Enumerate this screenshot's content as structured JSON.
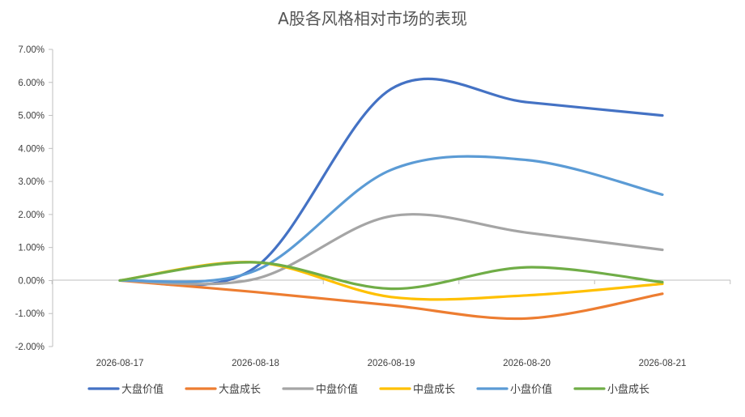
{
  "chart_data": {
    "type": "line",
    "title": "A股各风格相对市场的表现",
    "xlabel": "",
    "ylabel": "",
    "categories": [
      "2026-08-17",
      "2026-08-18",
      "2026-08-19",
      "2026-08-20",
      "2026-08-21"
    ],
    "ylim": [
      -0.02,
      0.07
    ],
    "yticks": [
      "-2.00%",
      "-1.00%",
      "0.00%",
      "1.00%",
      "2.00%",
      "3.00%",
      "4.00%",
      "5.00%",
      "6.00%",
      "7.00%"
    ],
    "grid": false,
    "legend_position": "bottom",
    "smooth": true,
    "series": [
      {
        "name": "大盘价值",
        "color": "#4472C4",
        "values": [
          0.0,
          0.004,
          0.058,
          0.054,
          0.05
        ]
      },
      {
        "name": "大盘成长",
        "color": "#ED7D31",
        "values": [
          0.0,
          -0.0035,
          -0.0075,
          -0.0115,
          -0.004
        ]
      },
      {
        "name": "中盘价值",
        "color": "#A5A5A5",
        "values": [
          0.0,
          0.0005,
          0.0195,
          0.0145,
          0.0093
        ]
      },
      {
        "name": "中盘成长",
        "color": "#FFC000",
        "values": [
          0.0,
          0.0055,
          -0.005,
          -0.0045,
          -0.001
        ]
      },
      {
        "name": "小盘价值",
        "color": "#5B9BD5",
        "values": [
          0.0,
          0.003,
          0.0335,
          0.0365,
          0.026
        ]
      },
      {
        "name": "小盘成长",
        "color": "#70AD47",
        "values": [
          0.0,
          0.0055,
          -0.0025,
          0.004,
          -0.0005
        ]
      }
    ]
  }
}
